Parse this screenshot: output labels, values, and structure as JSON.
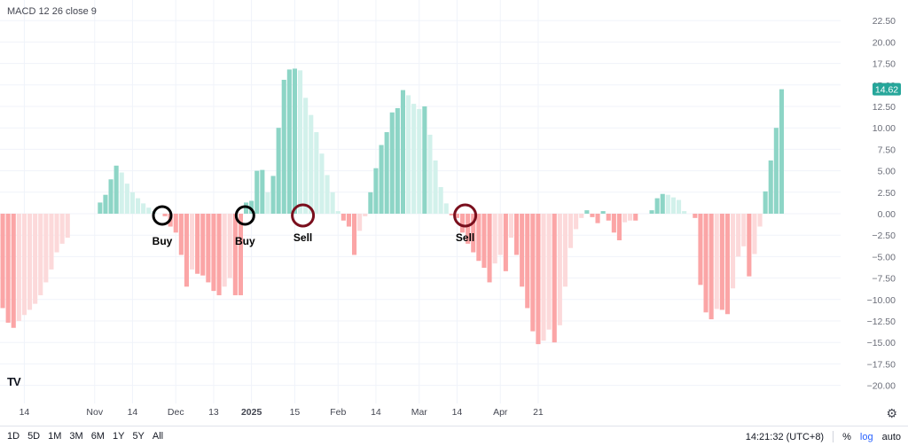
{
  "indicator": {
    "title": "MACD 12 26 close 9"
  },
  "price_scale": {
    "ticks": [
      "22.50",
      "20.00",
      "17.50",
      "15.00",
      "12.50",
      "10.00",
      "7.50",
      "5.00",
      "2.50",
      "0.00",
      "−2.50",
      "−5.00",
      "−7.50",
      "−10.00",
      "−12.50",
      "−15.00",
      "−17.50",
      "−20.00"
    ],
    "current_value_label": "14.62",
    "current_value_color": "#26a69a"
  },
  "time_scale": {
    "labels": [
      {
        "text": "14",
        "bar": 4,
        "bold": false
      },
      {
        "text": "Nov",
        "bar": 17,
        "bold": false
      },
      {
        "text": "14",
        "bar": 24,
        "bold": false
      },
      {
        "text": "Dec",
        "bar": 32,
        "bold": false
      },
      {
        "text": "13",
        "bar": 39,
        "bold": false
      },
      {
        "text": "2025",
        "bar": 46,
        "bold": true
      },
      {
        "text": "15",
        "bar": 54,
        "bold": false
      },
      {
        "text": "Feb",
        "bar": 62,
        "bold": false
      },
      {
        "text": "14",
        "bar": 69,
        "bold": false
      },
      {
        "text": "Mar",
        "bar": 77,
        "bold": false
      },
      {
        "text": "14",
        "bar": 84,
        "bold": false
      },
      {
        "text": "Apr",
        "bar": 92,
        "bold": false
      },
      {
        "text": "21",
        "bar": 99,
        "bold": false
      }
    ]
  },
  "colors": {
    "pos_strong": "#8dd5c6",
    "pos_weak": "#d2f1eb",
    "neg_strong": "#fba5a6",
    "neg_weak": "#fcd9da",
    "buy_circle": "#000000",
    "sell_circle": "#7a0f1d",
    "grid": "#f0f3fa"
  },
  "signals": [
    {
      "label": "Buy",
      "type": "buy",
      "bar": 29.5
    },
    {
      "label": "Buy",
      "type": "buy",
      "bar": 44.8
    },
    {
      "label": "Sell",
      "type": "sell",
      "bar": 55.5
    },
    {
      "label": "Sell",
      "type": "sell",
      "bar": 85.5
    }
  ],
  "toolbar": {
    "ranges": [
      "1D",
      "5D",
      "1M",
      "3M",
      "6M",
      "1Y",
      "5Y",
      "All"
    ],
    "time": "14:21:32 (UTC+8)",
    "percent": "%",
    "log": "log",
    "auto": "auto"
  },
  "chart_data": {
    "type": "bar",
    "subtype": "histogram",
    "ylim": [
      -21.5,
      23.5
    ],
    "grid": true,
    "values": [
      -11,
      -12.7,
      -13.3,
      -12.5,
      -11.8,
      -11.2,
      -10.5,
      -9.5,
      -8,
      -6.5,
      -4.5,
      -3.5,
      -2.8,
      0,
      0,
      0,
      0,
      0,
      1.3,
      2.2,
      4,
      5.6,
      4.8,
      3.5,
      2.5,
      1.8,
      1.2,
      0.7,
      0.3,
      0,
      -0.3,
      -1.5,
      -2.2,
      -4.8,
      -8.5,
      -6.5,
      -7,
      -7.2,
      -8,
      -9,
      -9.5,
      -8.5,
      -7.5,
      -9.5,
      -9.5,
      1.3,
      1.5,
      5,
      5.1,
      2.5,
      4.4,
      10,
      15.6,
      16.8,
      16.9,
      16.7,
      13.5,
      11.5,
      9.5,
      7,
      4.5,
      2.5,
      0.3,
      -0.8,
      -1.5,
      -4.8,
      -2,
      -0.3,
      2.5,
      5.3,
      8,
      9.5,
      11.8,
      12.3,
      14.4,
      13.8,
      12.8,
      12.2,
      12.5,
      9.2,
      6.2,
      3.1,
      1.2,
      -0.2,
      -0.5,
      -2.2,
      -3.5,
      -4.5,
      -5.5,
      -6.3,
      -8,
      -5.8,
      -4.8,
      -6.7,
      -2.8,
      -4.8,
      -8.5,
      -11,
      -13.7,
      -15.2,
      -14.8,
      -13.5,
      -15,
      -13,
      -8.5,
      -4,
      -1.8,
      -0.5,
      0.4,
      -0.4,
      -1.1,
      0.3,
      -0.8,
      -2.2,
      -3.1,
      -1,
      -0.8,
      -0.8,
      0,
      0,
      0.4,
      1.8,
      2.3,
      2.2,
      1.9,
      1.6,
      0.3,
      0,
      -0.5,
      -8.3,
      -11.5,
      -12.3,
      -11.1,
      -11.2,
      -11.7,
      -8.7,
      -5,
      -3.8,
      -7.3,
      -4.7,
      -1.5,
      2.6,
      6.2,
      10,
      14.5
    ]
  }
}
